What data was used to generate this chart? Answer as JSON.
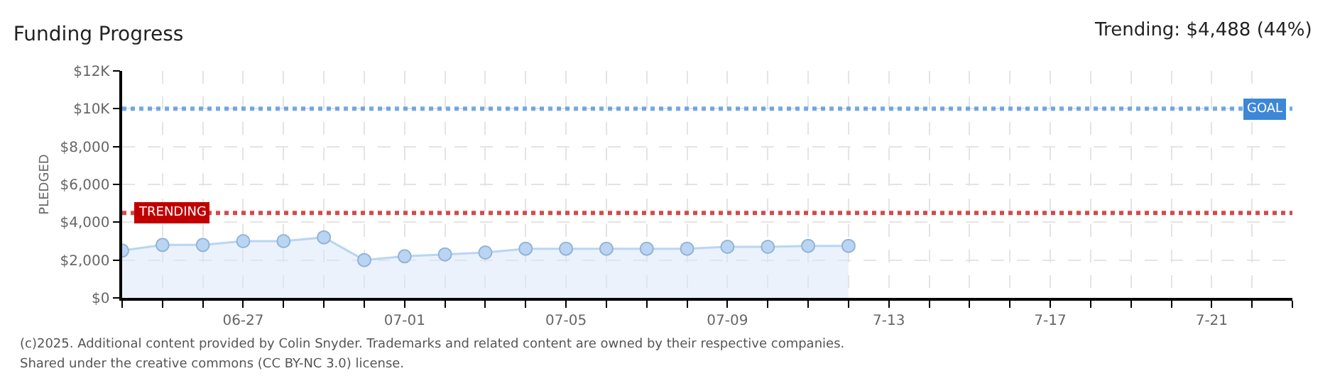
{
  "chart_data": {
    "type": "area",
    "title": "Funding Progress",
    "ylabel": "PLEDGED",
    "x": [
      "--06-24",
      "--06-25",
      "--06-26",
      "--06-27",
      "--06-28",
      "--06-29",
      "--06-30",
      "--07-01",
      "--07-02",
      "--07-03",
      "--07-04",
      "--07-05",
      "--07-06",
      "--07-07",
      "--07-08",
      "--07-09",
      "--07-10",
      "--07-11",
      "--07-12"
    ],
    "series": [
      {
        "color": "#b9d5f3",
        "values": [
          2500,
          2800,
          2800,
          3000,
          3000,
          3200,
          2000,
          2200,
          2300,
          2400,
          2600,
          2600,
          2600,
          2600,
          2600,
          2700,
          2700,
          2750,
          2750
        ]
      }
    ],
    "xlim": [
      "--06-24",
      "--07-23"
    ],
    "xticks": [
      {
        "value": "--06-24",
        "label": null
      },
      {
        "value": "--06-25",
        "label": null
      },
      {
        "value": "--06-26",
        "label": null
      },
      {
        "value": "--06-27",
        "label": "06-27"
      },
      {
        "value": "--06-28",
        "label": null
      },
      {
        "value": "--06-29",
        "label": null
      },
      {
        "value": "--06-30",
        "label": null
      },
      {
        "value": "--07-01",
        "label": "07-01"
      },
      {
        "value": "--07-02",
        "label": null
      },
      {
        "value": "--07-03",
        "label": null
      },
      {
        "value": "--07-04",
        "label": null
      },
      {
        "value": "--07-05",
        "label": "07-05"
      },
      {
        "value": "--07-06",
        "label": null
      },
      {
        "value": "--07-07",
        "label": null
      },
      {
        "value": "--07-08",
        "label": null
      },
      {
        "value": "--07-09",
        "label": "07-09"
      },
      {
        "value": "--07-10",
        "label": null
      },
      {
        "value": "--07-11",
        "label": null
      },
      {
        "value": "--07-12",
        "label": null
      },
      {
        "value": "--07-13",
        "label": "7-13"
      },
      {
        "value": "--07-14",
        "label": null
      },
      {
        "value": "--07-15",
        "label": null
      },
      {
        "value": "--07-16",
        "label": null
      },
      {
        "value": "--07-17",
        "label": "7-17"
      },
      {
        "value": "--07-18",
        "label": null
      },
      {
        "value": "--07-19",
        "label": null
      },
      {
        "value": "--07-20",
        "label": null
      },
      {
        "value": "--07-21",
        "label": "7-21"
      },
      {
        "value": "--07-22",
        "label": null
      },
      {
        "value": "--07-23",
        "label": null
      }
    ],
    "ylim": [
      0,
      12000
    ],
    "yticks": [
      {
        "value": 0,
        "label": "$0"
      },
      {
        "value": 2000,
        "label": "$2,000"
      },
      {
        "value": 4000,
        "label": "$4,000"
      },
      {
        "value": 6000,
        "label": "$6,000"
      },
      {
        "value": 8000,
        "label": "$8,000"
      },
      {
        "value": 10000,
        "label": "$10K"
      },
      {
        "value": 12000,
        "label": "$12K"
      }
    ],
    "grid": true,
    "marker": "circle",
    "line_style": "solid",
    "ref_lines": [
      {
        "axis": "y",
        "value": 10000,
        "label": "GOAL",
        "color": "#3d87d6",
        "line_style": "dotted"
      },
      {
        "axis": "y",
        "value": 4488,
        "label": "TRENDING",
        "color": "#c00000",
        "line_style": "dotted"
      }
    ],
    "annotations": [
      "Trending: $4,488 (44%)",
      "(c)2025. Additional content provided by Colin Snyder. Trademarks and related content are owned by their respective companies.",
      "Shared under the creative commons (CC BY-NC 3.0) license."
    ]
  }
}
